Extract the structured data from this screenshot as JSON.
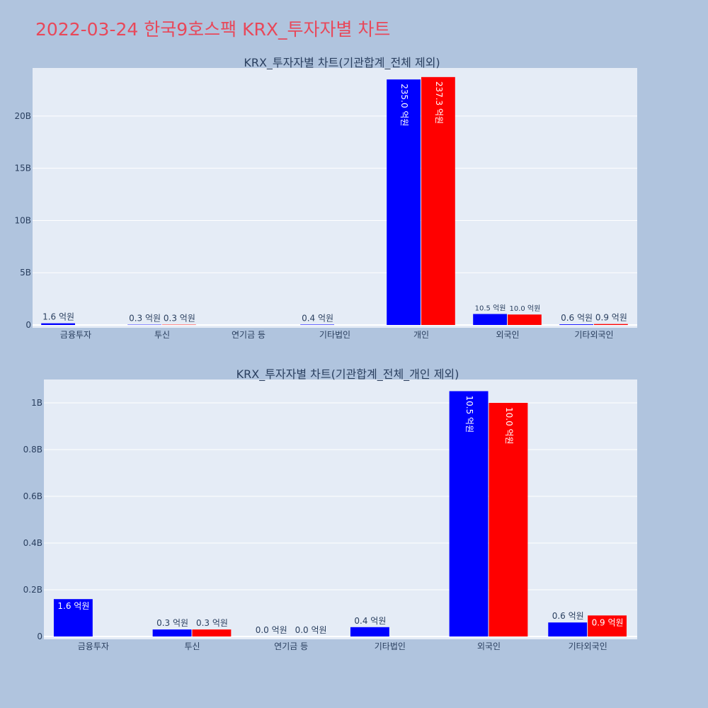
{
  "title": "2022-03-24 한국9호스팩 KRX_투자자별 차트",
  "colors": {
    "background": "#b0c4de",
    "plot_bg": "#e5ecf6",
    "buy": "#0000ff",
    "sell": "#ff0000",
    "title": "#e8485a",
    "text": "#2a3f5f"
  },
  "chart_data": [
    {
      "type": "bar",
      "title": "KRX_투자자별 차트(기관합계_전체 제외)",
      "categories": [
        "금융투자",
        "투신",
        "연기금 등",
        "기타법인",
        "개인",
        "외국인",
        "기타외국인"
      ],
      "series": [
        {
          "values": [
            0.16,
            0.03,
            0,
            0.04,
            23.5,
            1.05,
            0.06
          ],
          "labels": [
            "1.6 억원",
            "0.3 억원",
            "",
            "0.4 억원",
            "235.0 억원",
            "10.5 억원",
            "0.6 억원"
          ]
        },
        {
          "values": [
            0,
            0.03,
            0,
            0,
            23.73,
            1.0,
            0.09
          ],
          "labels": [
            "",
            "0.3 억원",
            "",
            "",
            "237.3 억원",
            "10.0 억원",
            "0.9 억원"
          ]
        }
      ],
      "yticks": [
        0,
        5,
        10,
        15,
        20
      ],
      "ytick_labels": [
        "0",
        "5B",
        "10B",
        "15B",
        "20B"
      ],
      "ylim": [
        0,
        24.6
      ]
    },
    {
      "type": "bar",
      "title": "KRX_투자자별 차트(기관합계_전체_개인 제외)",
      "categories": [
        "금융투자",
        "투신",
        "연기금 등",
        "기타법인",
        "외국인",
        "기타외국인"
      ],
      "series": [
        {
          "values": [
            0.16,
            0.03,
            0,
            0.04,
            1.05,
            0.06
          ],
          "labels": [
            "1.6 억원",
            "0.3 억원",
            "0.0 억원",
            "0.4 억원",
            "10.5 억원",
            "0.6 억원"
          ]
        },
        {
          "values": [
            0,
            0.03,
            0,
            0,
            1.0,
            0.09
          ],
          "labels": [
            "",
            "0.3 억원",
            "0.0 억원",
            "",
            "10.0 억원",
            "0.9 억원"
          ]
        }
      ],
      "yticks": [
        0,
        0.2,
        0.4,
        0.6,
        0.8,
        1.0
      ],
      "ytick_labels": [
        "0",
        "0.2B",
        "0.4B",
        "0.6B",
        "0.8B",
        "1B"
      ],
      "ylim": [
        0,
        1.1
      ]
    }
  ]
}
